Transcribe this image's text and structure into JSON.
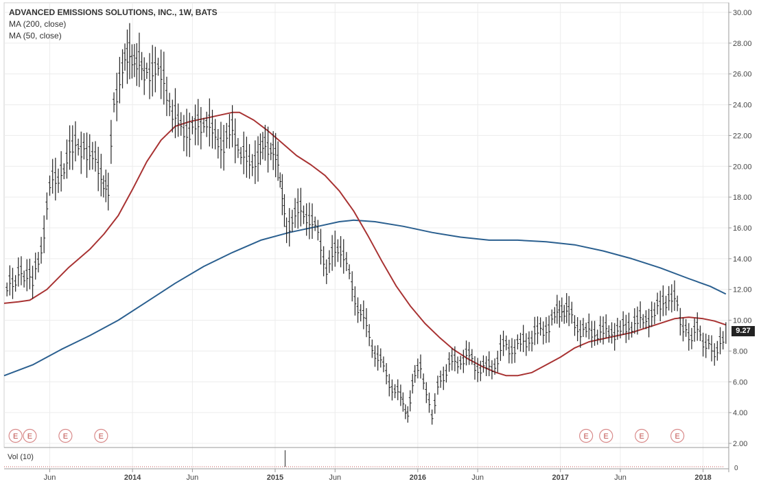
{
  "legend": {
    "title": "ADVANCED EMISSIONS SOLUTIONS, INC., 1W, BATS",
    "ma200": "MA (200, close)",
    "ma50": "MA (50, close)"
  },
  "volume_label": "Vol (10)",
  "last_price": "9.27",
  "earnings_marker": "E",
  "colors": {
    "price_bars": "#222222",
    "ma200": "#2a5f8f",
    "ma50": "#a83232",
    "earnings": "#d98a8a",
    "grid": "#ececec",
    "axis": "#999999",
    "badge": "#222222"
  },
  "chart_data": {
    "type": "line",
    "title": "ADVANCED EMISSIONS SOLUTIONS, INC., 1W, BATS",
    "ylim": [
      2,
      30
    ],
    "y_ticks": [
      "2.00",
      "4.00",
      "6.00",
      "8.00",
      "10.00",
      "12.00",
      "14.00",
      "16.00",
      "18.00",
      "20.00",
      "22.00",
      "24.00",
      "26.00",
      "28.00",
      "30.00"
    ],
    "x_ticks": [
      {
        "label": "Jun",
        "t": 2013.42
      },
      {
        "label": "2014",
        "t": 2014.0
      },
      {
        "label": "Jun",
        "t": 2014.42
      },
      {
        "label": "2015",
        "t": 2015.0
      },
      {
        "label": "Jun",
        "t": 2015.42
      },
      {
        "label": "2016",
        "t": 2016.0
      },
      {
        "label": "Jun",
        "t": 2016.42
      },
      {
        "label": "2017",
        "t": 2017.0
      },
      {
        "label": "Jun",
        "t": 2017.42
      },
      {
        "label": "2018",
        "t": 2018.0
      }
    ],
    "x_range": [
      2013.1,
      2018.18
    ],
    "grid": true,
    "legend_position": "top-left",
    "vol_axis_label": "0",
    "last_value": 9.27,
    "price_series": {
      "name": "ADES 1W",
      "points": [
        [
          2013.12,
          12.0
        ],
        [
          2013.22,
          13.2
        ],
        [
          2013.3,
          12.5
        ],
        [
          2013.36,
          14.5
        ],
        [
          2013.42,
          18.8
        ],
        [
          2013.5,
          19.6
        ],
        [
          2013.58,
          21.3
        ],
        [
          2013.66,
          21.2
        ],
        [
          2013.72,
          20.8
        ],
        [
          2013.78,
          19.3
        ],
        [
          2013.83,
          18.5
        ],
        [
          2013.87,
          24.0
        ],
        [
          2013.93,
          26.5
        ],
        [
          2013.98,
          27.3
        ],
        [
          2014.03,
          26.8
        ],
        [
          2014.1,
          26.0
        ],
        [
          2014.16,
          26.5
        ],
        [
          2014.22,
          25.5
        ],
        [
          2014.28,
          23.5
        ],
        [
          2014.34,
          22.5
        ],
        [
          2014.4,
          22.3
        ],
        [
          2014.46,
          22.6
        ],
        [
          2014.52,
          23.0
        ],
        [
          2014.58,
          21.8
        ],
        [
          2014.64,
          21.5
        ],
        [
          2014.7,
          22.3
        ],
        [
          2014.76,
          21.0
        ],
        [
          2014.82,
          20.0
        ],
        [
          2014.88,
          20.8
        ],
        [
          2014.93,
          21.2
        ],
        [
          2014.97,
          21.3
        ],
        [
          2015.02,
          20.0
        ],
        [
          2015.05,
          18.5
        ],
        [
          2015.08,
          15.5
        ],
        [
          2015.12,
          16.8
        ],
        [
          2015.18,
          17.0
        ],
        [
          2015.24,
          16.8
        ],
        [
          2015.3,
          15.5
        ],
        [
          2015.36,
          13.5
        ],
        [
          2015.42,
          14.3
        ],
        [
          2015.46,
          14.8
        ],
        [
          2015.52,
          12.8
        ],
        [
          2015.58,
          11.0
        ],
        [
          2015.64,
          9.5
        ],
        [
          2015.7,
          8.0
        ],
        [
          2015.76,
          6.8
        ],
        [
          2015.82,
          5.8
        ],
        [
          2015.88,
          4.8
        ],
        [
          2015.93,
          4.2
        ],
        [
          2015.98,
          6.2
        ],
        [
          2016.02,
          7.3
        ],
        [
          2016.06,
          5.0
        ],
        [
          2016.1,
          4.0
        ],
        [
          2016.14,
          5.5
        ],
        [
          2016.18,
          6.5
        ],
        [
          2016.24,
          7.2
        ],
        [
          2016.3,
          7.5
        ],
        [
          2016.36,
          7.6
        ],
        [
          2016.42,
          7.0
        ],
        [
          2016.48,
          6.8
        ],
        [
          2016.54,
          7.2
        ],
        [
          2016.6,
          8.3
        ],
        [
          2016.66,
          8.2
        ],
        [
          2016.72,
          8.4
        ],
        [
          2016.78,
          8.8
        ],
        [
          2016.84,
          9.2
        ],
        [
          2016.9,
          9.5
        ],
        [
          2016.96,
          10.2
        ],
        [
          2017.01,
          10.8
        ],
        [
          2017.06,
          10.5
        ],
        [
          2017.12,
          9.5
        ],
        [
          2017.18,
          9.3
        ],
        [
          2017.24,
          9.2
        ],
        [
          2017.3,
          9.3
        ],
        [
          2017.36,
          9.2
        ],
        [
          2017.42,
          9.4
        ],
        [
          2017.48,
          9.6
        ],
        [
          2017.54,
          10.0
        ],
        [
          2017.6,
          10.0
        ],
        [
          2017.66,
          10.5
        ],
        [
          2017.72,
          11.2
        ],
        [
          2017.78,
          11.5
        ],
        [
          2017.82,
          11.0
        ],
        [
          2017.86,
          9.5
        ],
        [
          2017.9,
          8.8
        ],
        [
          2017.94,
          9.5
        ],
        [
          2017.98,
          9.0
        ],
        [
          2018.02,
          8.5
        ],
        [
          2018.06,
          8.0
        ],
        [
          2018.1,
          8.2
        ],
        [
          2018.14,
          8.5
        ],
        [
          2018.16,
          9.27
        ]
      ]
    },
    "series": [
      {
        "name": "MA (200, close)",
        "points": [
          [
            2013.1,
            6.4
          ],
          [
            2013.3,
            7.1
          ],
          [
            2013.5,
            8.1
          ],
          [
            2013.7,
            9.0
          ],
          [
            2013.9,
            10.0
          ],
          [
            2014.1,
            11.2
          ],
          [
            2014.3,
            12.4
          ],
          [
            2014.5,
            13.5
          ],
          [
            2014.7,
            14.4
          ],
          [
            2014.9,
            15.2
          ],
          [
            2015.1,
            15.7
          ],
          [
            2015.3,
            16.1
          ],
          [
            2015.45,
            16.4
          ],
          [
            2015.55,
            16.5
          ],
          [
            2015.7,
            16.4
          ],
          [
            2015.9,
            16.1
          ],
          [
            2016.1,
            15.7
          ],
          [
            2016.3,
            15.4
          ],
          [
            2016.5,
            15.2
          ],
          [
            2016.7,
            15.2
          ],
          [
            2016.9,
            15.1
          ],
          [
            2017.1,
            14.9
          ],
          [
            2017.3,
            14.5
          ],
          [
            2017.5,
            14.0
          ],
          [
            2017.7,
            13.4
          ],
          [
            2017.9,
            12.7
          ],
          [
            2018.05,
            12.2
          ],
          [
            2018.16,
            11.7
          ]
        ]
      },
      {
        "name": "MA (50, close)",
        "points": [
          [
            2013.1,
            11.1
          ],
          [
            2013.2,
            11.2
          ],
          [
            2013.28,
            11.3
          ],
          [
            2013.4,
            12.0
          ],
          [
            2013.55,
            13.4
          ],
          [
            2013.7,
            14.6
          ],
          [
            2013.8,
            15.6
          ],
          [
            2013.9,
            16.8
          ],
          [
            2014.0,
            18.5
          ],
          [
            2014.1,
            20.3
          ],
          [
            2014.2,
            21.7
          ],
          [
            2014.3,
            22.6
          ],
          [
            2014.4,
            22.9
          ],
          [
            2014.5,
            23.1
          ],
          [
            2014.6,
            23.3
          ],
          [
            2014.7,
            23.5
          ],
          [
            2014.75,
            23.5
          ],
          [
            2014.85,
            23.0
          ],
          [
            2014.95,
            22.3
          ],
          [
            2015.05,
            21.5
          ],
          [
            2015.15,
            20.7
          ],
          [
            2015.25,
            20.1
          ],
          [
            2015.35,
            19.4
          ],
          [
            2015.45,
            18.4
          ],
          [
            2015.55,
            17.1
          ],
          [
            2015.65,
            15.5
          ],
          [
            2015.75,
            13.8
          ],
          [
            2015.85,
            12.2
          ],
          [
            2015.95,
            10.9
          ],
          [
            2016.05,
            9.8
          ],
          [
            2016.15,
            8.9
          ],
          [
            2016.25,
            8.1
          ],
          [
            2016.35,
            7.5
          ],
          [
            2016.45,
            7.0
          ],
          [
            2016.55,
            6.6
          ],
          [
            2016.62,
            6.4
          ],
          [
            2016.7,
            6.4
          ],
          [
            2016.8,
            6.6
          ],
          [
            2016.9,
            7.1
          ],
          [
            2017.0,
            7.6
          ],
          [
            2017.1,
            8.2
          ],
          [
            2017.2,
            8.6
          ],
          [
            2017.3,
            8.8
          ],
          [
            2017.4,
            9.0
          ],
          [
            2017.5,
            9.2
          ],
          [
            2017.6,
            9.5
          ],
          [
            2017.7,
            9.8
          ],
          [
            2017.8,
            10.1
          ],
          [
            2017.9,
            10.2
          ],
          [
            2018.0,
            10.1
          ],
          [
            2018.08,
            9.95
          ],
          [
            2018.16,
            9.7
          ]
        ]
      }
    ],
    "earnings_markers": [
      2013.18,
      2013.28,
      2013.53,
      2013.78,
      2017.18,
      2017.32,
      2017.57,
      2017.82
    ]
  }
}
